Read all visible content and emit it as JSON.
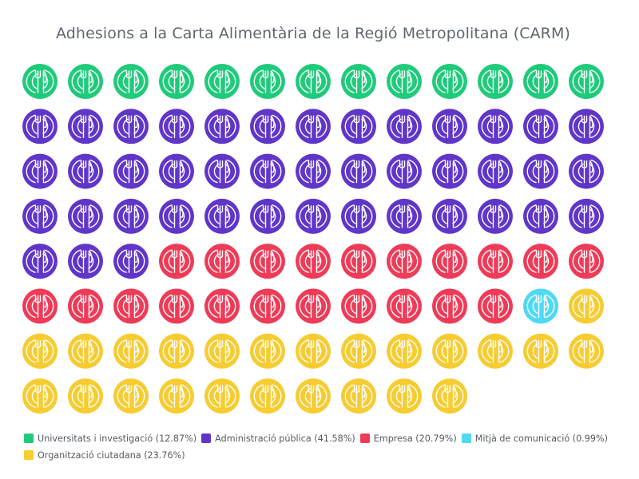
{
  "chart_data": {
    "type": "waffle",
    "title": "Adhesions a la Carta Alimentària de la Regió Metropolitana (CARM)",
    "unit_icon": "plate-fork-knife-icon",
    "total_units": 101,
    "columns": 13,
    "series": [
      {
        "name": "Universitats i investigació",
        "count": 13,
        "percent_label": "(12.87%)",
        "color": "#1fcb7b"
      },
      {
        "name": "Administració pública",
        "count": 42,
        "percent_label": "(41.58%)",
        "color": "#6036c9"
      },
      {
        "name": "Empresa",
        "count": 21,
        "percent_label": "(20.79%)",
        "color": "#ee3b58"
      },
      {
        "name": "Mitjà de comunicació",
        "count": 1,
        "percent_label": "(0.99%)",
        "color": "#4fd9f4"
      },
      {
        "name": "Organització ciutadana",
        "count": 24,
        "percent_label": "(23.76%)",
        "color": "#f6cc31"
      }
    ],
    "legend_position": "bottom-left"
  }
}
